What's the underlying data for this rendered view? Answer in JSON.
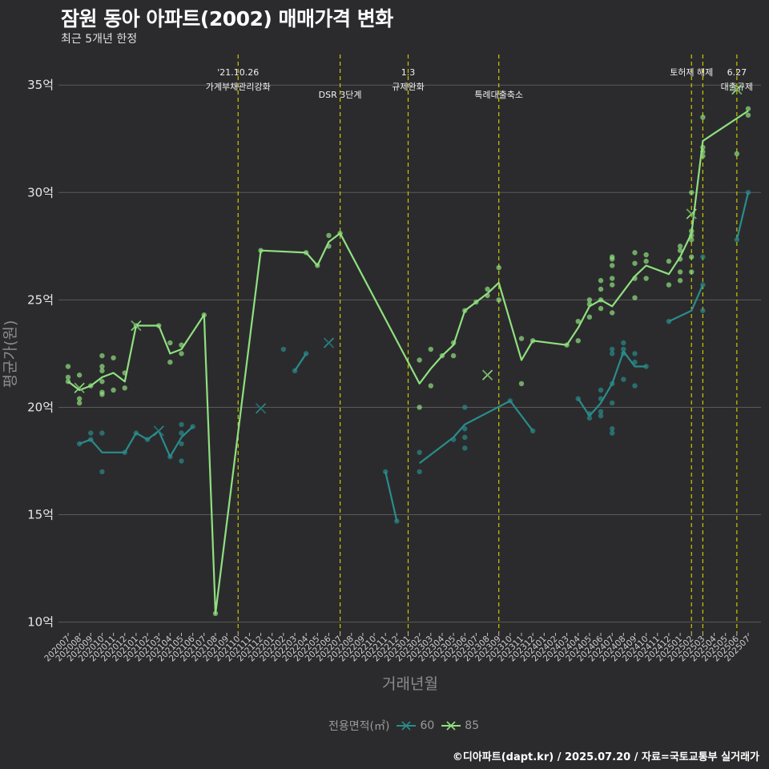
{
  "title": "잠원 동아 아파트(2002) 매매가격 변화",
  "subtitle": "최근 5개년 한정",
  "caption": "©디아파트(dapt.kr) / 2025.07.20 / 자료=국토교통부 실거래가",
  "legend": {
    "title": "전용면적(㎡)",
    "items": [
      "60",
      "85"
    ]
  },
  "colors": {
    "background": "#2b2b2d",
    "grid": "#5a5a5a",
    "series60": "#2a8c8c",
    "series85": "#90e080",
    "event_line": "#c8c800"
  },
  "chart_data": {
    "type": "line",
    "xlabel": "거래년월",
    "ylabel": "평균가(원)",
    "ylim": [
      9.5,
      36.5
    ],
    "yticks": [
      10,
      15,
      20,
      25,
      30,
      35
    ],
    "ytick_labels": [
      "10억",
      "15억",
      "20억",
      "25억",
      "30억",
      "35억"
    ],
    "x_labels": [
      "202007",
      "202008",
      "202009",
      "202010",
      "202011",
      "202012",
      "202101",
      "202102",
      "202103",
      "202104",
      "202105",
      "202106",
      "202107",
      "202108",
      "202109",
      "202110",
      "202111",
      "202112",
      "202201",
      "202202",
      "202203",
      "202204",
      "202205",
      "202206",
      "202207",
      "202208",
      "202209",
      "202210",
      "202211",
      "202212",
      "202301",
      "202302",
      "202303",
      "202304",
      "202305",
      "202306",
      "202307",
      "202308",
      "202309",
      "202310",
      "202311",
      "202312",
      "202401",
      "202402",
      "202403",
      "202404",
      "202405",
      "202406",
      "202407",
      "202408",
      "202409",
      "202410",
      "202411",
      "202412",
      "202501",
      "202502",
      "202503",
      "202504",
      "202505",
      "202506",
      "202507"
    ],
    "grid": true,
    "legend_position": "bottom",
    "events": [
      {
        "x": "202110",
        "label": [
          "'21.10.26",
          "가계부채관리강화"
        ],
        "row": 0
      },
      {
        "x": "202207",
        "label": [
          "DSR 3단계"
        ],
        "row": 1
      },
      {
        "x": "202301",
        "label": [
          "1.3",
          "규제완화"
        ],
        "row": 0
      },
      {
        "x": "202309",
        "label": [
          "특례대출축소"
        ],
        "row": 1
      },
      {
        "x": "202502",
        "label": [
          "토허제 해제"
        ],
        "row": 0
      },
      {
        "x": "202503",
        "label": [],
        "row": 0
      },
      {
        "x": "202506",
        "label": [
          "6.27",
          "대출규제"
        ],
        "row": 0
      }
    ],
    "series": [
      {
        "name": "60",
        "color": "#2a8c8c",
        "line_segments": [
          [
            [
              "202008",
              18.3
            ],
            [
              "202009",
              18.5
            ],
            [
              "202010",
              17.9
            ],
            [
              "202012",
              17.9
            ],
            [
              "202101",
              18.8
            ],
            [
              "202102",
              18.5
            ],
            [
              "202103",
              18.9
            ],
            [
              "202104",
              17.7
            ],
            [
              "202105",
              18.6
            ],
            [
              "202106",
              19.1
            ]
          ],
          [
            [
              "202203",
              21.7
            ],
            [
              "202204",
              22.5
            ]
          ],
          [
            [
              "202211",
              17.0
            ],
            [
              "202212",
              14.7
            ]
          ],
          [
            [
              "202302",
              17.4
            ],
            [
              "202305",
              18.6
            ],
            [
              "202306",
              19.2
            ],
            [
              "202310",
              20.3
            ],
            [
              "202312",
              18.9
            ]
          ],
          [
            [
              "202404",
              20.4
            ],
            [
              "202405",
              19.6
            ],
            [
              "202406",
              20.2
            ],
            [
              "202407",
              21.1
            ],
            [
              "202408",
              22.6
            ],
            [
              "202409",
              21.9
            ],
            [
              "202410",
              21.9
            ]
          ],
          [
            [
              "202412",
              24.0
            ],
            [
              "202502",
              24.5
            ],
            [
              "202503",
              25.7
            ]
          ],
          [
            [
              "202506",
              27.8
            ],
            [
              "202507",
              30.0
            ]
          ]
        ],
        "points": [
          [
            "202008",
            18.3
          ],
          [
            "202009",
            18.5
          ],
          [
            "202009",
            18.8
          ],
          [
            "202010",
            17.0
          ],
          [
            "202010",
            18.8
          ],
          [
            "202012",
            17.9
          ],
          [
            "202101",
            18.8
          ],
          [
            "202102",
            18.5
          ],
          [
            "202104",
            17.7
          ],
          [
            "202105",
            17.5
          ],
          [
            "202105",
            18.3
          ],
          [
            "202105",
            18.8
          ],
          [
            "202105",
            19.2
          ],
          [
            "202106",
            19.1
          ],
          [
            "202203",
            21.7
          ],
          [
            "202204",
            22.5
          ],
          [
            "202202",
            22.7
          ],
          [
            "202211",
            17.0
          ],
          [
            "202212",
            14.7
          ],
          [
            "202302",
            17.0
          ],
          [
            "202302",
            17.9
          ],
          [
            "202305",
            18.5
          ],
          [
            "202306",
            18.1
          ],
          [
            "202306",
            18.6
          ],
          [
            "202306",
            19.0
          ],
          [
            "202306",
            20.0
          ],
          [
            "202310",
            20.3
          ],
          [
            "202312",
            18.9
          ],
          [
            "202404",
            20.4
          ],
          [
            "202405",
            19.5
          ],
          [
            "202405",
            19.7
          ],
          [
            "202406",
            19.6
          ],
          [
            "202406",
            19.8
          ],
          [
            "202406",
            20.4
          ],
          [
            "202406",
            20.8
          ],
          [
            "202407",
            18.8
          ],
          [
            "202407",
            19.0
          ],
          [
            "202407",
            20.2
          ],
          [
            "202407",
            21.1
          ],
          [
            "202407",
            22.5
          ],
          [
            "202407",
            22.7
          ],
          [
            "202408",
            21.3
          ],
          [
            "202408",
            22.5
          ],
          [
            "202408",
            22.7
          ],
          [
            "202408",
            23.0
          ],
          [
            "202409",
            21.0
          ],
          [
            "202409",
            22.1
          ],
          [
            "202409",
            22.5
          ],
          [
            "202410",
            21.9
          ],
          [
            "202412",
            24.0
          ],
          [
            "202503",
            24.5
          ],
          [
            "202503",
            25.7
          ],
          [
            "202503",
            27.0
          ],
          [
            "202506",
            27.8
          ],
          [
            "202507",
            30.0
          ]
        ],
        "cancelled": [
          [
            "202103",
            18.9
          ],
          [
            "202112",
            19.95
          ],
          [
            "202206",
            23.0
          ]
        ]
      },
      {
        "name": "85",
        "color": "#90e080",
        "line_segments": [
          [
            [
              "202007",
              21.2
            ],
            [
              "202008",
              20.8
            ],
            [
              "202009",
              21.0
            ],
            [
              "202010",
              21.4
            ],
            [
              "202011",
              21.6
            ],
            [
              "202012",
              21.2
            ],
            [
              "202101",
              23.8
            ],
            [
              "202103",
              23.8
            ],
            [
              "202104",
              22.5
            ],
            [
              "202105",
              22.7
            ],
            [
              "202107",
              24.3
            ],
            [
              "202108",
              10.4
            ],
            [
              "202112",
              27.3
            ],
            [
              "202204",
              27.2
            ],
            [
              "202205",
              26.6
            ],
            [
              "202206",
              27.7
            ],
            [
              "202207",
              28.1
            ],
            [
              "202302",
              21.1
            ],
            [
              "202303",
              21.8
            ],
            [
              "202304",
              22.4
            ],
            [
              "202305",
              22.9
            ],
            [
              "202306",
              24.5
            ],
            [
              "202307",
              24.9
            ],
            [
              "202308",
              25.3
            ],
            [
              "202309",
              25.8
            ],
            [
              "202311",
              22.2
            ],
            [
              "202312",
              23.1
            ],
            [
              "202403",
              22.9
            ],
            [
              "202404",
              23.7
            ],
            [
              "202405",
              24.7
            ],
            [
              "202406",
              25.0
            ],
            [
              "202407",
              24.7
            ],
            [
              "202408",
              25.4
            ],
            [
              "202409",
              26.1
            ],
            [
              "202410",
              26.6
            ],
            [
              "202412",
              26.2
            ],
            [
              "202501",
              27.0
            ],
            [
              "202502",
              28.1
            ],
            [
              "202503",
              32.4
            ],
            [
              "202507",
              33.8
            ]
          ]
        ],
        "points": [
          [
            "202007",
            21.4
          ],
          [
            "202007",
            21.9
          ],
          [
            "202007",
            21.2
          ],
          [
            "202008",
            20.2
          ],
          [
            "202008",
            20.4
          ],
          [
            "202008",
            21.5
          ],
          [
            "202009",
            21.0
          ],
          [
            "202010",
            20.6
          ],
          [
            "202010",
            20.7
          ],
          [
            "202010",
            21.2
          ],
          [
            "202010",
            21.7
          ],
          [
            "202010",
            21.9
          ],
          [
            "202010",
            22.4
          ],
          [
            "202011",
            20.8
          ],
          [
            "202011",
            22.3
          ],
          [
            "202012",
            20.9
          ],
          [
            "202012",
            21.6
          ],
          [
            "202101",
            23.8
          ],
          [
            "202103",
            23.8
          ],
          [
            "202104",
            22.1
          ],
          [
            "202104",
            23.0
          ],
          [
            "202105",
            22.5
          ],
          [
            "202105",
            22.9
          ],
          [
            "202107",
            24.3
          ],
          [
            "202108",
            10.4
          ],
          [
            "202112",
            27.3
          ],
          [
            "202204",
            27.2
          ],
          [
            "202205",
            26.6
          ],
          [
            "202206",
            27.5
          ],
          [
            "202206",
            28.0
          ],
          [
            "202207",
            28.1
          ],
          [
            "202302",
            20.0
          ],
          [
            "202302",
            22.2
          ],
          [
            "202303",
            21.0
          ],
          [
            "202303",
            22.7
          ],
          [
            "202304",
            22.4
          ],
          [
            "202305",
            22.4
          ],
          [
            "202305",
            23.0
          ],
          [
            "202306",
            24.5
          ],
          [
            "202307",
            24.9
          ],
          [
            "202308",
            25.2
          ],
          [
            "202308",
            25.5
          ],
          [
            "202309",
            25.0
          ],
          [
            "202309",
            26.5
          ],
          [
            "202311",
            21.1
          ],
          [
            "202311",
            23.2
          ],
          [
            "202312",
            23.1
          ],
          [
            "202403",
            22.9
          ],
          [
            "202404",
            23.1
          ],
          [
            "202404",
            24.0
          ],
          [
            "202405",
            24.2
          ],
          [
            "202405",
            24.8
          ],
          [
            "202405",
            25.0
          ],
          [
            "202406",
            24.6
          ],
          [
            "202406",
            25.0
          ],
          [
            "202406",
            25.5
          ],
          [
            "202406",
            25.9
          ],
          [
            "202407",
            24.4
          ],
          [
            "202407",
            25.7
          ],
          [
            "202407",
            26.0
          ],
          [
            "202407",
            26.6
          ],
          [
            "202407",
            26.9
          ],
          [
            "202407",
            27.0
          ],
          [
            "202409",
            25.1
          ],
          [
            "202409",
            26.0
          ],
          [
            "202409",
            26.7
          ],
          [
            "202409",
            27.2
          ],
          [
            "202410",
            26.0
          ],
          [
            "202410",
            26.8
          ],
          [
            "202410",
            27.1
          ],
          [
            "202412",
            25.7
          ],
          [
            "202412",
            26.8
          ],
          [
            "202501",
            25.9
          ],
          [
            "202501",
            26.3
          ],
          [
            "202501",
            26.9
          ],
          [
            "202501",
            27.3
          ],
          [
            "202501",
            27.5
          ],
          [
            "202502",
            26.3
          ],
          [
            "202502",
            27.0
          ],
          [
            "202502",
            27.8
          ],
          [
            "202502",
            28.0
          ],
          [
            "202502",
            28.2
          ],
          [
            "202502",
            30.0
          ],
          [
            "202503",
            31.7
          ],
          [
            "202503",
            31.9
          ],
          [
            "202503",
            32.1
          ],
          [
            "202503",
            33.5
          ],
          [
            "202506",
            31.8
          ],
          [
            "202507",
            33.6
          ],
          [
            "202507",
            33.9
          ]
        ],
        "cancelled": [
          [
            "202008",
            20.9
          ],
          [
            "202101",
            23.8
          ],
          [
            "202308",
            21.5
          ],
          [
            "202502",
            29.0
          ],
          [
            "202506",
            34.8
          ]
        ]
      }
    ]
  }
}
